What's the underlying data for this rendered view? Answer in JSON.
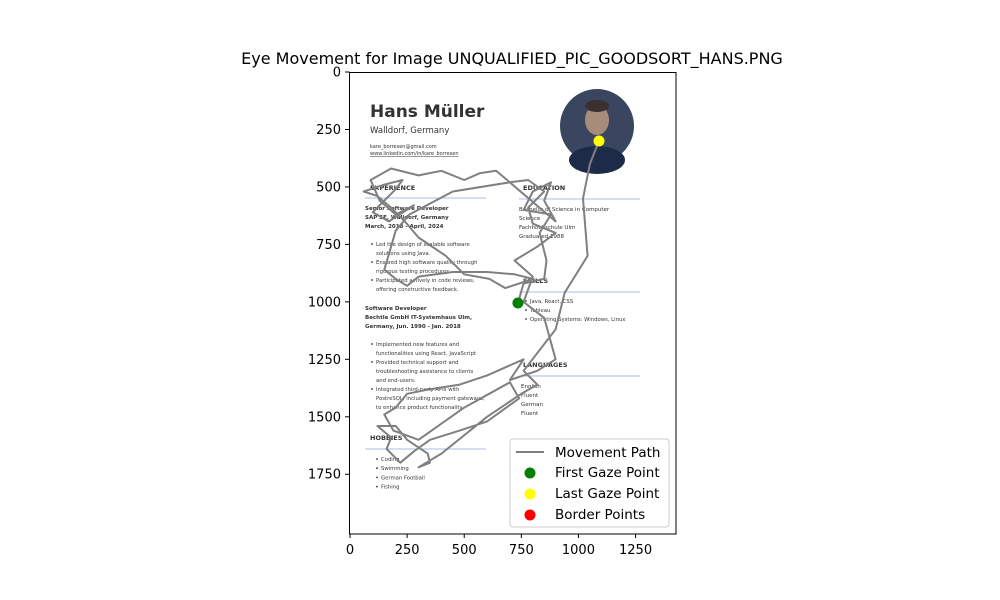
{
  "chart_data": {
    "type": "scatter",
    "title": "Eye Movement for Image UNQUALIFIED_PIC_GOODSORT_HANS.PNG",
    "xlabel": "",
    "ylabel": "",
    "xlim": [
      0,
      1427
    ],
    "ylim": [
      2010,
      0
    ],
    "y_inverted": true,
    "x_ticks": [
      0,
      250,
      500,
      750,
      1000,
      1250
    ],
    "y_ticks": [
      0,
      250,
      500,
      750,
      1000,
      1250,
      1500,
      1750
    ],
    "grid": false,
    "legend_position": "lower-right",
    "colors": {
      "path": "#808080",
      "first": "#008000",
      "last": "#ffff00",
      "border": "#ff0000",
      "cv_accent": "#5470c6"
    },
    "series": [
      {
        "name": "Movement Path",
        "kind": "line",
        "x": [
          735,
          760,
          850,
          860,
          830,
          880,
          760,
          800,
          880,
          850,
          900,
          640,
          570,
          500,
          400,
          300,
          180,
          90,
          130,
          200,
          280,
          170,
          100,
          200,
          230,
          150,
          60,
          120,
          180,
          240,
          300,
          420,
          500,
          610,
          680,
          800,
          720,
          600,
          450,
          300,
          250,
          200,
          150,
          180,
          200,
          260,
          450,
          700,
          780,
          850,
          780,
          800,
          900,
          820,
          720,
          800,
          760,
          850,
          900,
          820,
          700,
          760,
          600,
          480,
          350,
          250,
          200,
          150,
          190,
          300,
          500,
          700,
          740,
          600,
          480,
          350,
          280,
          220,
          160,
          180,
          120,
          200,
          250,
          340,
          350,
          300,
          400,
          600,
          750,
          820,
          760,
          900,
          940,
          1040,
          1020,
          1050,
          1090
        ],
        "y": [
          1005,
          920,
          900,
          820,
          700,
          620,
          600,
          520,
          480,
          560,
          650,
          430,
          440,
          470,
          430,
          450,
          420,
          470,
          560,
          620,
          580,
          650,
          610,
          510,
          470,
          490,
          520,
          540,
          590,
          650,
          720,
          800,
          880,
          900,
          940,
          900,
          880,
          870,
          870,
          890,
          930,
          900,
          860,
          760,
          690,
          620,
          520,
          480,
          470,
          520,
          590,
          660,
          700,
          760,
          820,
          890,
          1000,
          1070,
          1250,
          1300,
          1340,
          1250,
          1320,
          1360,
          1380,
          1400,
          1460,
          1490,
          1560,
          1600,
          1460,
          1350,
          1420,
          1520,
          1560,
          1600,
          1650,
          1700,
          1640,
          1590,
          1540,
          1540,
          1600,
          1660,
          1700,
          1720,
          1660,
          1500,
          1400,
          1360,
          1300,
          1120,
          960,
          800,
          550,
          400,
          300
        ]
      },
      {
        "name": "First Gaze Point",
        "kind": "point",
        "x": [
          735
        ],
        "y": [
          1005
        ]
      },
      {
        "name": "Last Gaze Point",
        "kind": "point",
        "x": [
          1090
        ],
        "y": [
          300
        ]
      },
      {
        "name": "Border Points",
        "kind": "point",
        "x": [],
        "y": []
      }
    ],
    "background_image": {
      "name": "Hans Müller",
      "location": "Walldorf, Germany",
      "email": "kare_borresen@gmail.com",
      "linkedin": "www.linkedin.com/in/kare_borresen",
      "experience_heading": "EXPERIENCE",
      "job1_title": "Senior Software Developer",
      "job1_company": "SAP SE, Walldorf, Germany",
      "job1_dates": "March, 2018 - April, 2024",
      "job1_bullets": [
        "Led the design of scalable software",
        "solutions using Java.",
        "Ensured high software quality through",
        "rigorous testing procedures.",
        "Participated actively in code reviews,",
        "offering constructive feedback."
      ],
      "job2_title": "Software Developer",
      "job2_company": "Bechtle GmbH IT-Systemhaus Ulm,",
      "job2_dates": "Germany, Jun. 1990 - Jan. 2018",
      "job2_bullets": [
        "Implemented new features and",
        "functionalities using React, JavaScript",
        "Provided technical support and",
        "troubleshooting assistance to clients",
        "and end-users.",
        "Integrated third-party APIs with",
        "PostreSQL, including payment gateways,",
        "to enhance product functionality"
      ],
      "hobbies_heading": "HOBBIES",
      "hobbies": [
        "Coding",
        "Swimming",
        "German Football",
        "Fishing"
      ],
      "education_heading": "EDUCATION",
      "education_lines": [
        "Bachelor of Science in Computer",
        "Science",
        "Fachhochschule Ulm",
        "Graduated 1988"
      ],
      "skills_heading": "SKILLS",
      "skills": [
        "Java, React, CSS",
        "Tableau",
        "Operating Systems: Windows, Linux"
      ],
      "languages_heading": "LANGUAGES",
      "languages": [
        "English",
        "Fluent",
        "German",
        "Fluent"
      ]
    }
  }
}
